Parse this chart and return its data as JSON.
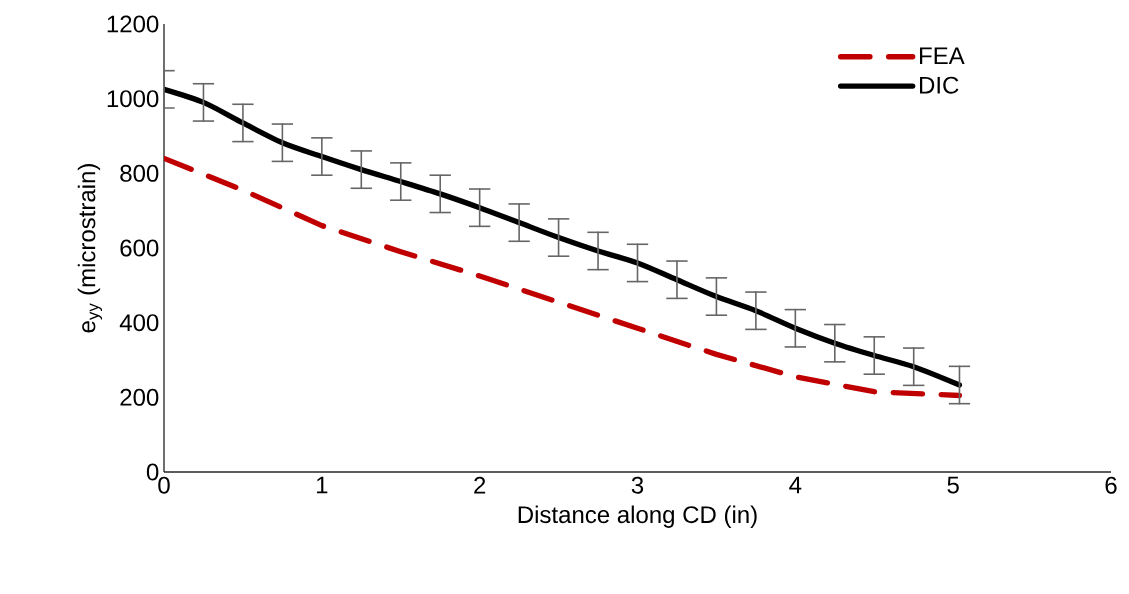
{
  "chart_data": {
    "type": "line",
    "xlabel": "Distance along CD (in)",
    "ylabel": "e$_{yy}$ (microstrain)",
    "xlim": [
      0,
      6
    ],
    "xticks": [
      0,
      1,
      2,
      3,
      4,
      5,
      6
    ],
    "ylim": [
      0,
      1200
    ],
    "yticks": [
      0,
      200,
      400,
      600,
      800,
      1000,
      1200
    ],
    "grid": false,
    "legend": "top right",
    "marker": "none",
    "series": [
      {
        "name": "FEA",
        "color": "#c00000",
        "line_style": "dashed",
        "x": [
          0,
          0.5,
          1,
          1.5,
          2,
          2.5,
          3,
          3.5,
          4,
          4.5,
          5.04
        ],
        "values": [
          840,
          755,
          660,
          590,
          525,
          455,
          385,
          315,
          255,
          215,
          205
        ]
      },
      {
        "name": "DIC",
        "color": "#000000",
        "line_style": "solid",
        "x": [
          0,
          0.25,
          0.5,
          0.75,
          1,
          1.25,
          1.5,
          1.75,
          2,
          2.25,
          2.5,
          2.75,
          3,
          3.25,
          3.5,
          3.75,
          4,
          4.25,
          4.5,
          4.75,
          5.04
        ],
        "values": [
          1025,
          990,
          935,
          882,
          845,
          810,
          778,
          745,
          708,
          668,
          628,
          592,
          560,
          515,
          470,
          432,
          385,
          345,
          312,
          282,
          233
        ],
        "errors": [
          50,
          50,
          50,
          50,
          50,
          50,
          50,
          50,
          50,
          50,
          50,
          50,
          50,
          50,
          50,
          50,
          50,
          50,
          50,
          50,
          50
        ]
      }
    ]
  }
}
